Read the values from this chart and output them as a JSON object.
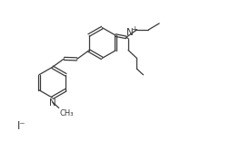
{
  "bg_color": "#ffffff",
  "line_color": "#3a3a3a",
  "figsize": [
    2.54,
    1.66
  ],
  "dpi": 100,
  "xlim": [
    0,
    10
  ],
  "ylim": [
    0,
    7
  ]
}
